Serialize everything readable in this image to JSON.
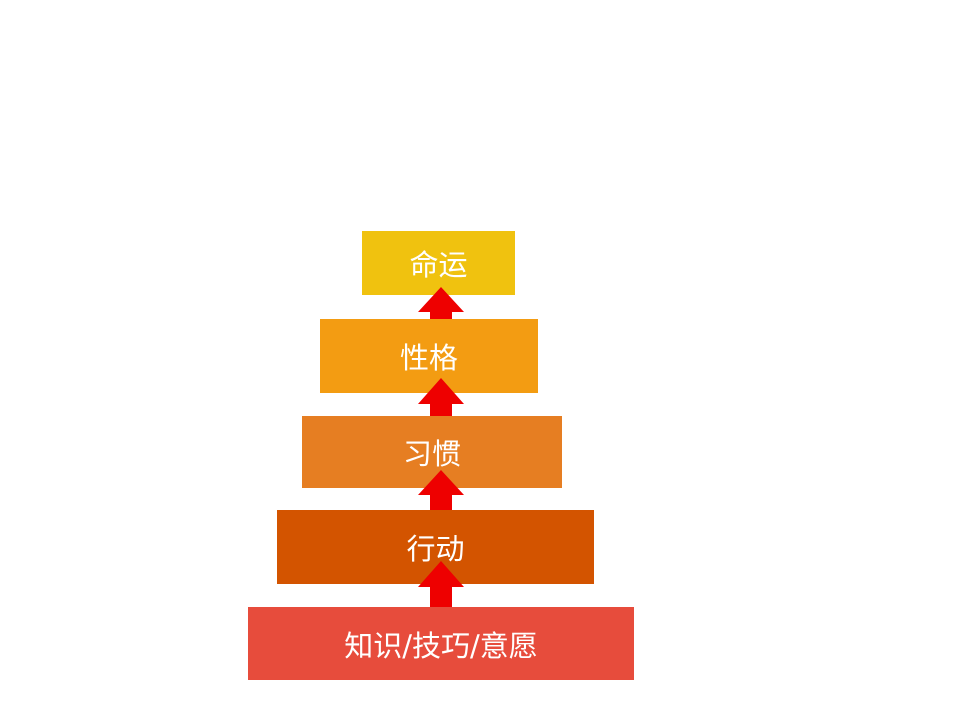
{
  "levels": [
    {
      "label": "命运",
      "color": "#F0C20F"
    },
    {
      "label": "性格",
      "color": "#F39C12"
    },
    {
      "label": "习惯",
      "color": "#E67E22"
    },
    {
      "label": "行动",
      "color": "#D35400"
    },
    {
      "label": "知识/技巧/意愿",
      "color": "#E74C3C"
    }
  ],
  "arrow_color": "#EE0000"
}
